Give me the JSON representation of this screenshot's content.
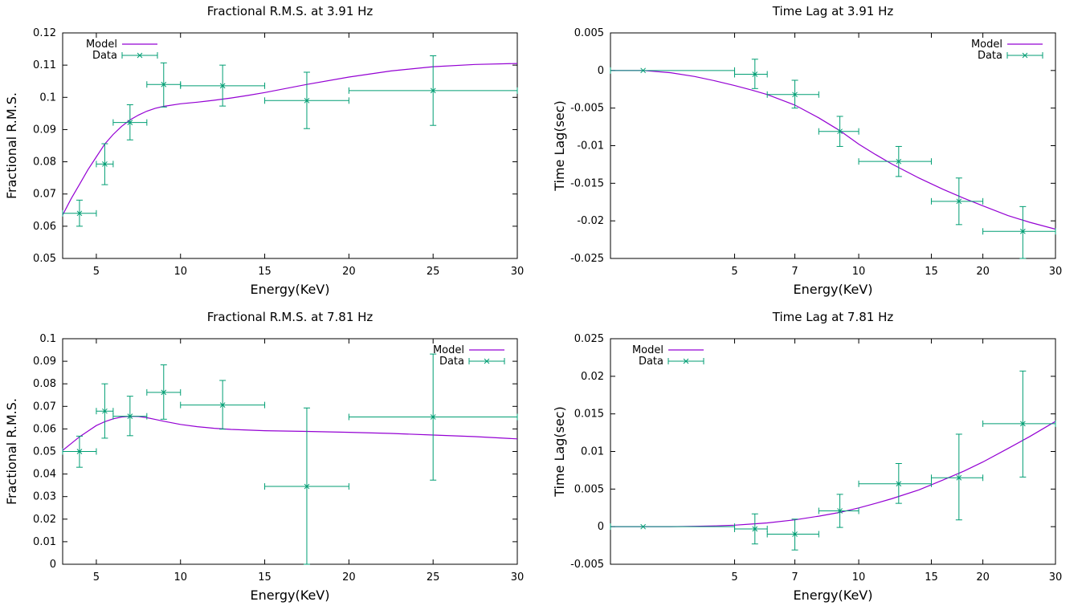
{
  "colors": {
    "model": "#9400d3",
    "data": "#009e73",
    "axis": "#000000",
    "background": "#ffffff"
  },
  "chart_data": [
    {
      "type": "line",
      "title": "Fractional R.M.S. at 3.91 Hz",
      "xlabel": "Energy(KeV)",
      "ylabel": "Fractional R.M.S.",
      "xscale": "linear",
      "xlim": [
        3,
        30
      ],
      "ylim": [
        0.05,
        0.12
      ],
      "xticks": [
        5,
        10,
        15,
        20,
        25,
        30
      ],
      "xtick_labels": [
        "5",
        "10",
        "15",
        "20",
        "25",
        "30"
      ],
      "yticks": [
        0.05,
        0.06,
        0.07,
        0.08,
        0.09,
        0.1,
        0.11,
        0.12
      ],
      "ytick_labels": [
        "0.05",
        "0.06",
        "0.07",
        "0.08",
        "0.09",
        "0.1",
        "0.11",
        "0.12"
      ],
      "legend": {
        "position": "top-left",
        "entries": [
          "Model",
          "Data"
        ]
      },
      "grid": false,
      "model": {
        "name": "Model",
        "x": [
          3,
          3.5,
          4,
          4.5,
          5,
          5.5,
          6,
          6.5,
          7,
          7.5,
          8,
          8.5,
          9,
          10,
          11,
          12,
          13,
          14,
          15,
          17.5,
          20,
          22.5,
          25,
          27.5,
          30
        ],
        "y": [
          0.0635,
          0.0685,
          0.073,
          0.0775,
          0.0815,
          0.0855,
          0.0885,
          0.091,
          0.093,
          0.0945,
          0.0957,
          0.0966,
          0.0972,
          0.098,
          0.0985,
          0.0991,
          0.0998,
          0.1006,
          0.1015,
          0.104,
          0.1063,
          0.1082,
          0.1095,
          0.1102,
          0.1105
        ]
      },
      "data": {
        "name": "Data",
        "x": [
          4,
          5.5,
          7,
          9,
          12.5,
          17.5,
          25
        ],
        "xerr_low": [
          3,
          5,
          6,
          8,
          10,
          15,
          20
        ],
        "xerr_high": [
          5,
          6,
          8,
          10,
          15,
          20,
          30
        ],
        "y": [
          0.064,
          0.0793,
          0.0922,
          0.104,
          0.1036,
          0.099,
          0.1021
        ],
        "yerr_low": [
          0.06,
          0.0729,
          0.0868,
          0.097,
          0.0973,
          0.0903,
          0.0913
        ],
        "yerr_high": [
          0.0681,
          0.0856,
          0.0977,
          0.1107,
          0.11,
          0.1078,
          0.1129
        ]
      }
    },
    {
      "type": "line",
      "title": "Time Lag at 3.91 Hz",
      "xlabel": "Energy(KeV)",
      "ylabel": "Time Lag(sec)",
      "xscale": "log",
      "xlim": [
        2.5,
        30
      ],
      "ylim": [
        -0.025,
        0.005
      ],
      "xticks": [
        5,
        7,
        10,
        15,
        20,
        30
      ],
      "xtick_labels": [
        "5",
        "7",
        "10",
        "15",
        "20",
        "30"
      ],
      "yticks": [
        -0.025,
        -0.02,
        -0.015,
        -0.01,
        -0.005,
        0,
        0.005
      ],
      "ytick_labels": [
        "-0.025",
        "-0.02",
        "-0.015",
        "-0.01",
        "-0.005",
        "0",
        "0.005"
      ],
      "legend": {
        "position": "top-right",
        "entries": [
          "Model",
          "Data"
        ]
      },
      "grid": false,
      "model": {
        "name": "Model",
        "x": [
          2.5,
          3,
          3.5,
          4,
          4.5,
          5,
          5.5,
          6,
          7,
          8,
          9,
          10,
          11,
          12,
          14,
          16,
          18,
          20,
          23,
          26,
          30
        ],
        "y": [
          0,
          0,
          -0.0003,
          -0.0008,
          -0.0014,
          -0.002,
          -0.0026,
          -0.0032,
          -0.0046,
          -0.0063,
          -0.008,
          -0.0098,
          -0.0112,
          -0.0124,
          -0.0143,
          -0.0158,
          -0.017,
          -0.018,
          -0.0193,
          -0.0202,
          -0.0211
        ]
      },
      "data": {
        "name": "Data",
        "x": [
          3,
          5.6,
          7,
          9,
          12.5,
          17.5,
          25
        ],
        "xerr_low": [
          2.5,
          5,
          6,
          8,
          10,
          15,
          20
        ],
        "xerr_high": [
          5,
          6,
          8,
          10,
          15,
          20,
          30
        ],
        "y": [
          0,
          -0.0005,
          -0.0032,
          -0.0081,
          -0.0121,
          -0.0174,
          -0.0214
        ],
        "yerr_low": [
          0,
          -0.0024,
          -0.005,
          -0.0101,
          -0.0141,
          -0.0205,
          -0.025
        ],
        "yerr_high": [
          0,
          0.0015,
          -0.0013,
          -0.0061,
          -0.0101,
          -0.0143,
          -0.0181
        ]
      }
    },
    {
      "type": "line",
      "title": "Fractional R.M.S. at 7.81 Hz",
      "xlabel": "Energy(KeV)",
      "ylabel": "Fractional R.M.S.",
      "xscale": "linear",
      "xlim": [
        3,
        30
      ],
      "ylim": [
        0,
        0.1
      ],
      "xticks": [
        5,
        10,
        15,
        20,
        25,
        30
      ],
      "xtick_labels": [
        "5",
        "10",
        "15",
        "20",
        "25",
        "30"
      ],
      "yticks": [
        0,
        0.01,
        0.02,
        0.03,
        0.04,
        0.05,
        0.06,
        0.07,
        0.08,
        0.09,
        0.1
      ],
      "ytick_labels": [
        "0",
        "0.01",
        "0.02",
        "0.03",
        "0.04",
        "0.05",
        "0.06",
        "0.07",
        "0.08",
        "0.09",
        "0.1"
      ],
      "legend": {
        "position": "top-right",
        "entries": [
          "Model",
          "Data"
        ]
      },
      "grid": false,
      "model": {
        "name": "Model",
        "x": [
          3,
          3.5,
          4,
          4.5,
          5,
          5.5,
          6,
          6.5,
          7,
          7.5,
          8,
          8.5,
          9,
          10,
          11,
          12,
          13,
          15,
          17.5,
          20,
          22.5,
          25,
          27.5,
          30
        ],
        "y": [
          0.0505,
          0.0535,
          0.0565,
          0.059,
          0.0615,
          0.0632,
          0.0645,
          0.0653,
          0.0656,
          0.0655,
          0.065,
          0.0642,
          0.0634,
          0.062,
          0.061,
          0.0603,
          0.0598,
          0.0592,
          0.0589,
          0.0585,
          0.058,
          0.0573,
          0.0566,
          0.0556
        ]
      },
      "data": {
        "name": "Data",
        "x": [
          4,
          5.5,
          7,
          9,
          12.5,
          17.5,
          25
        ],
        "xerr_low": [
          3,
          5,
          6,
          8,
          10,
          15,
          20
        ],
        "xerr_high": [
          5,
          6,
          8,
          10,
          15,
          20,
          30
        ],
        "y": [
          0.05,
          0.0679,
          0.0656,
          0.0762,
          0.0706,
          0.0345,
          0.0653
        ],
        "yerr_low": [
          0.043,
          0.0559,
          0.057,
          0.0643,
          0.0599,
          0,
          0.0373
        ],
        "yerr_high": [
          0.0568,
          0.08,
          0.0745,
          0.0884,
          0.0815,
          0.0693,
          0.0932
        ]
      }
    },
    {
      "type": "line",
      "title": "Time Lag at 7.81 Hz",
      "xlabel": "Energy(KeV)",
      "ylabel": "Time Lag(sec)",
      "xscale": "log",
      "xlim": [
        2.5,
        30
      ],
      "ylim": [
        -0.005,
        0.025
      ],
      "xticks": [
        5,
        7,
        10,
        15,
        20,
        30
      ],
      "xtick_labels": [
        "5",
        "7",
        "10",
        "15",
        "20",
        "30"
      ],
      "yticks": [
        -0.005,
        0,
        0.005,
        0.01,
        0.015,
        0.02,
        0.025
      ],
      "ytick_labels": [
        "-0.005",
        "0",
        "0.005",
        "0.01",
        "0.015",
        "0.02",
        "0.025"
      ],
      "legend": {
        "position": "top-left",
        "entries": [
          "Model",
          "Data"
        ]
      },
      "grid": false,
      "model": {
        "name": "Model",
        "x": [
          2.5,
          3,
          3.5,
          4,
          4.5,
          5,
          5.5,
          6,
          7,
          8,
          9,
          10,
          11,
          12,
          14,
          16,
          18,
          20,
          23,
          26,
          30
        ],
        "y": [
          0,
          0,
          0,
          5e-05,
          0.0001,
          0.0002,
          0.00035,
          0.0005,
          0.0009,
          0.0014,
          0.0019,
          0.0025,
          0.0031,
          0.0037,
          0.0049,
          0.0062,
          0.0074,
          0.0086,
          0.0104,
          0.012,
          0.014
        ]
      },
      "data": {
        "name": "Data",
        "x": [
          3,
          5.6,
          7,
          9,
          12.5,
          17.5,
          25
        ],
        "xerr_low": [
          2.5,
          5,
          6,
          8,
          10,
          15,
          20
        ],
        "xerr_high": [
          5,
          6,
          8,
          10,
          15,
          20,
          30
        ],
        "y": [
          0,
          -0.0003,
          -0.001,
          0.0021,
          0.0057,
          0.0065,
          0.0137
        ],
        "yerr_low": [
          0,
          -0.0023,
          -0.0031,
          -0.0001,
          0.0031,
          0.0009,
          0.0066
        ],
        "yerr_high": [
          0,
          0.0017,
          0.001,
          0.0043,
          0.0084,
          0.0123,
          0.0207
        ]
      }
    }
  ]
}
